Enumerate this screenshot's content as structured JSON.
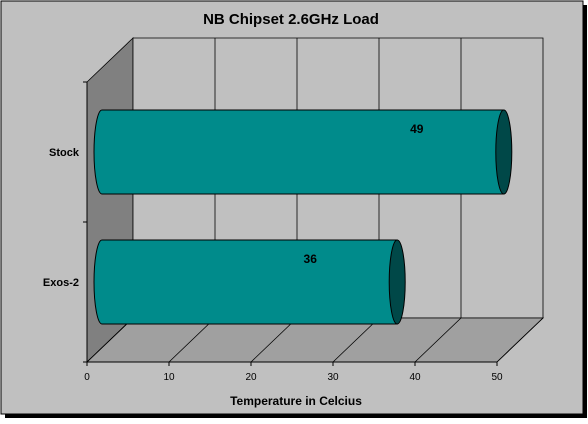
{
  "chart_data": {
    "type": "bar",
    "orientation": "horizontal",
    "style": "3d-cylinder",
    "title": "NB Chipset 2.6GHz Load",
    "xlabel": "Temperature in Celcius",
    "ylabel": "",
    "categories": [
      "Stock",
      "Exos-2"
    ],
    "values": [
      49,
      36
    ],
    "xlim": [
      0,
      50
    ],
    "x_ticks": [
      0,
      10,
      20,
      30,
      40,
      50
    ],
    "grid": true,
    "legend": "none",
    "colors": {
      "bar_body": "#008b8b",
      "bar_cap": "#004848",
      "wall": "#c0c0c0",
      "side_wall": "#808080",
      "floor": "#a0a0a0",
      "chart_area": "#c0c0c0"
    }
  }
}
